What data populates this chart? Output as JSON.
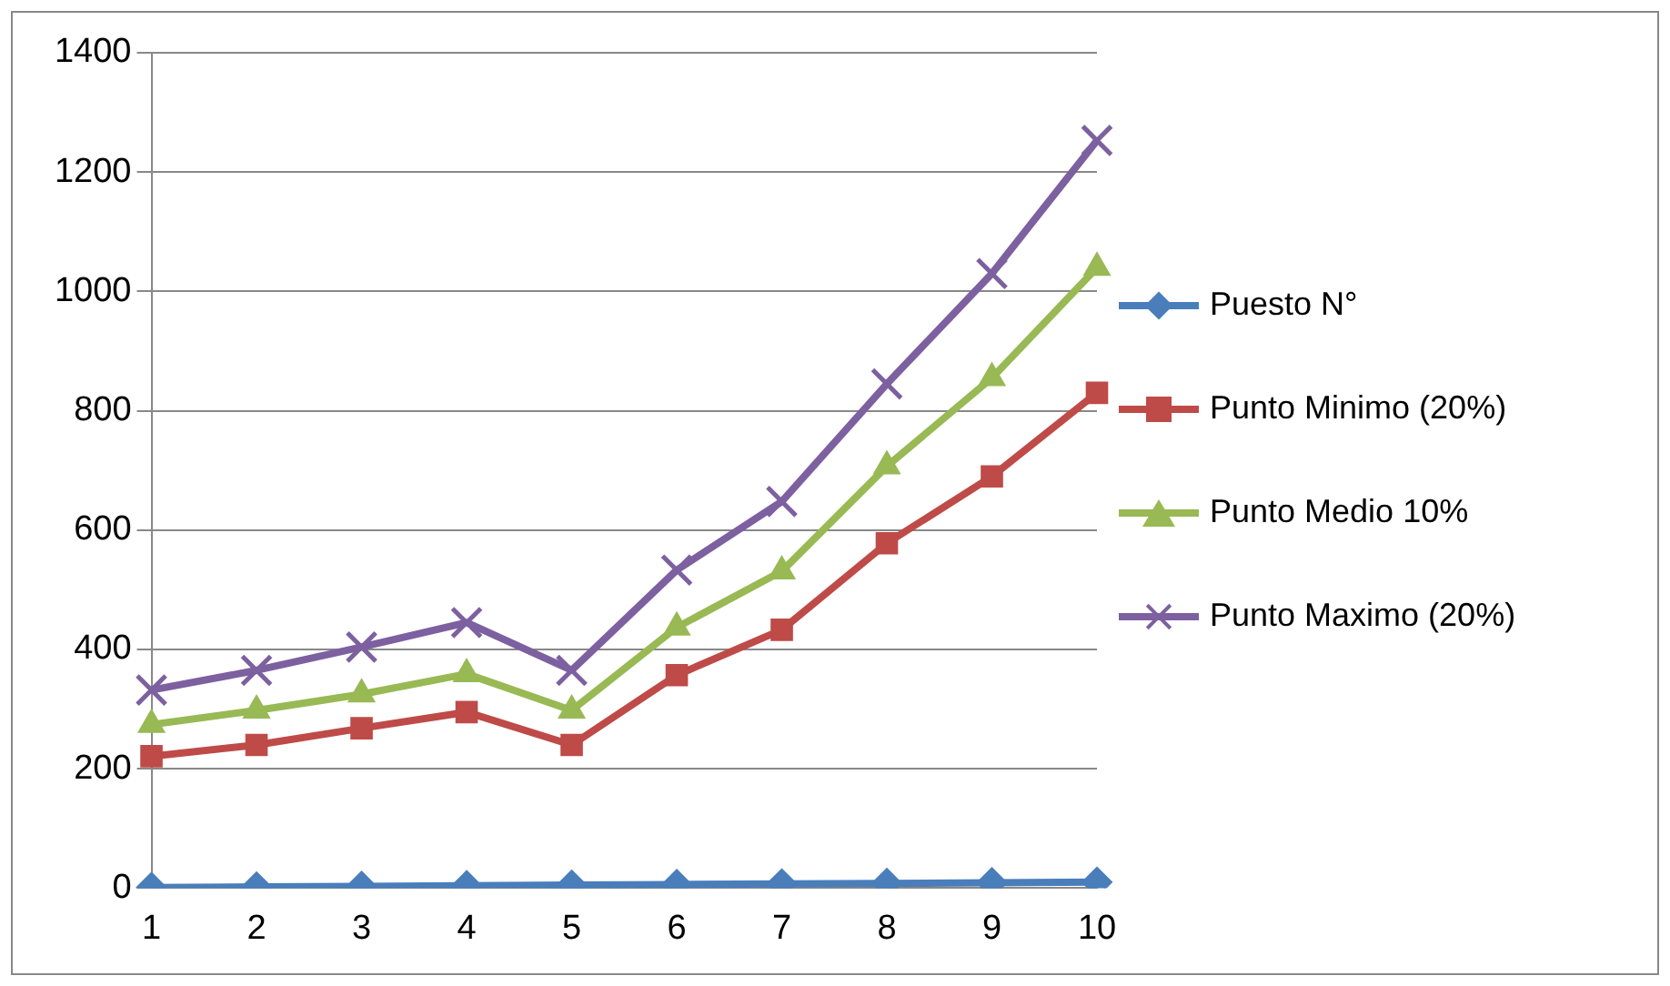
{
  "chart_data": {
    "type": "line",
    "categories": [
      "1",
      "2",
      "3",
      "4",
      "5",
      "6",
      "7",
      "8",
      "9",
      "10"
    ],
    "series": [
      {
        "name": "Puesto N°",
        "color": "#4a7ebb",
        "marker": "diamond",
        "values": [
          1,
          2,
          3,
          4,
          5,
          6,
          7,
          8,
          9,
          10
        ]
      },
      {
        "name": "Punto Minimo (20%)",
        "color": "#be4b48",
        "marker": "square",
        "values": [
          221,
          240,
          268,
          295,
          240,
          357,
          433,
          578,
          690,
          830
        ]
      },
      {
        "name": "Punto Medio 10%",
        "color": "#98b954",
        "marker": "triangle",
        "values": [
          274,
          298,
          325,
          359,
          298,
          437,
          531,
          707,
          855,
          1040
        ]
      },
      {
        "name": "Punto Maximo (20%)",
        "color": "#7d60a0",
        "marker": "cross",
        "values": [
          332,
          365,
          404,
          445,
          365,
          533,
          648,
          845,
          1030,
          1253
        ]
      }
    ],
    "ylim": [
      0,
      1400
    ],
    "yticks": [
      0,
      200,
      400,
      600,
      800,
      1000,
      1200,
      1400
    ],
    "grid": "y",
    "legend": "right"
  }
}
